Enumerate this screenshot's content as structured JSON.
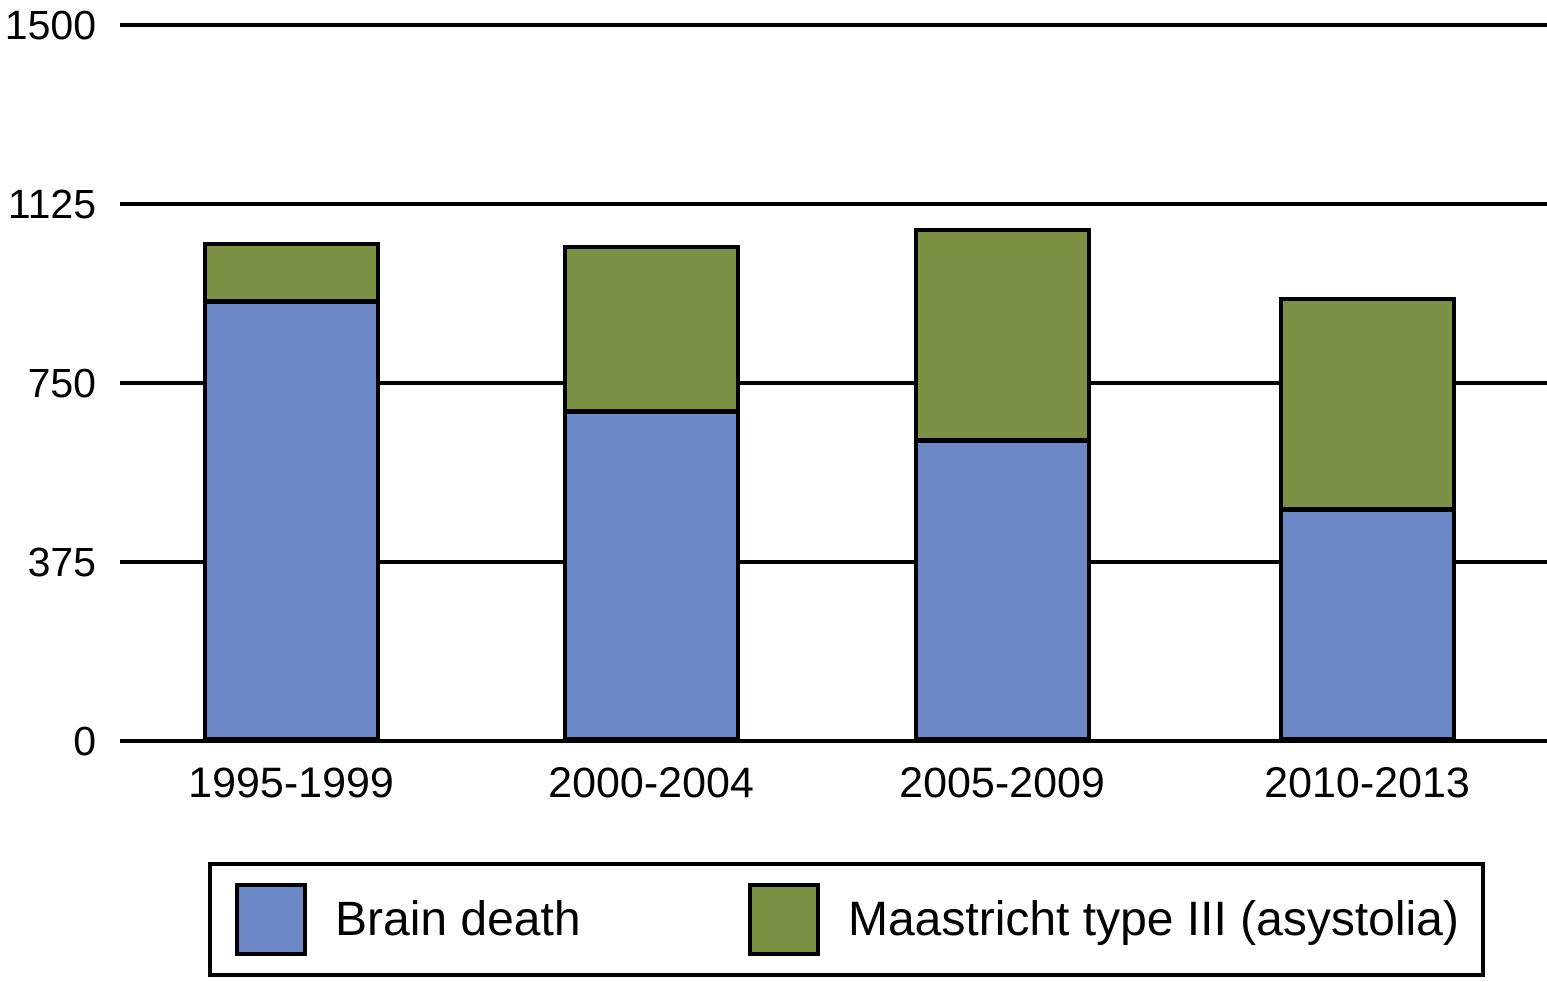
{
  "chart_data": {
    "type": "bar",
    "stacked": true,
    "title": "",
    "categories": [
      "1995-1999",
      "2000-2004",
      "2005-2009",
      "2010-2013"
    ],
    "series": [
      {
        "name": "Brain death",
        "color": "#6C88C6",
        "values": [
          915,
          685,
          625,
          480
        ]
      },
      {
        "name": "Maastricht type III (asystolia)",
        "color": "#7D9144",
        "values": [
          130,
          355,
          450,
          450
        ]
      }
    ],
    "totals": [
      1045,
      1040,
      1075,
      930
    ],
    "xlabel": "",
    "ylabel": "",
    "ylim": [
      0,
      1500
    ],
    "yticks": [
      0,
      375,
      750,
      1125,
      1500
    ],
    "grid": true,
    "gridline_color": "#000000",
    "bar_border_color": "#000000",
    "background_color": "#ffffff",
    "legend_position": "bottom"
  }
}
